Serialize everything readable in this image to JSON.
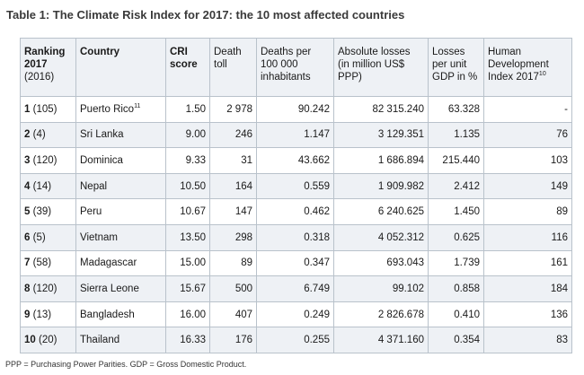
{
  "title": "Table 1: The Climate Risk Index for 2017: the 10 most affected countries",
  "headers": {
    "ranking_line1": "Ranking",
    "ranking_line2": "2017",
    "ranking_line3": "(2016)",
    "country": "Country",
    "cri": "CRI score",
    "death": "Death toll",
    "deaths_per": "Deaths per 100 000 inhabitants",
    "abs_losses": "Absolute losses (in million US$ PPP)",
    "losses_gdp": "Losses per unit GDP in %",
    "hdi": "Human Development Index 2017",
    "hdi_note": "10"
  },
  "rows": [
    {
      "rank": "1",
      "prev": "(105)",
      "country": "Puerto Rico",
      "note": "11",
      "cri": "1.50",
      "deaths": "2 978",
      "deaths_per": "90.242",
      "losses": "82 315.240",
      "gdp": "63.328",
      "hdi": "-"
    },
    {
      "rank": "2",
      "prev": "(4)",
      "country": "Sri Lanka",
      "note": "",
      "cri": "9.00",
      "deaths": "246",
      "deaths_per": "1.147",
      "losses": "3 129.351",
      "gdp": "1.135",
      "hdi": "76"
    },
    {
      "rank": "3",
      "prev": "(120)",
      "country": "Dominica",
      "note": "",
      "cri": "9.33",
      "deaths": "31",
      "deaths_per": "43.662",
      "losses": "1 686.894",
      "gdp": "215.440",
      "hdi": "103"
    },
    {
      "rank": "4",
      "prev": "(14)",
      "country": "Nepal",
      "note": "",
      "cri": "10.50",
      "deaths": "164",
      "deaths_per": "0.559",
      "losses": "1 909.982",
      "gdp": "2.412",
      "hdi": "149"
    },
    {
      "rank": "5",
      "prev": "(39)",
      "country": "Peru",
      "note": "",
      "cri": "10.67",
      "deaths": "147",
      "deaths_per": "0.462",
      "losses": "6 240.625",
      "gdp": "1.450",
      "hdi": "89"
    },
    {
      "rank": "6",
      "prev": "(5)",
      "country": "Vietnam",
      "note": "",
      "cri": "13.50",
      "deaths": "298",
      "deaths_per": "0.318",
      "losses": "4 052.312",
      "gdp": "0.625",
      "hdi": "116"
    },
    {
      "rank": "7",
      "prev": "(58)",
      "country": "Madagascar",
      "note": "",
      "cri": "15.00",
      "deaths": "89",
      "deaths_per": "0.347",
      "losses": "693.043",
      "gdp": "1.739",
      "hdi": "161"
    },
    {
      "rank": "8",
      "prev": "(120)",
      "country": "Sierra Leone",
      "note": "",
      "cri": "15.67",
      "deaths": "500",
      "deaths_per": "6.749",
      "losses": "99.102",
      "gdp": "0.858",
      "hdi": "184"
    },
    {
      "rank": "9",
      "prev": "(13)",
      "country": "Bangladesh",
      "note": "",
      "cri": "16.00",
      "deaths": "407",
      "deaths_per": "0.249",
      "losses": "2 826.678",
      "gdp": "0.410",
      "hdi": "136"
    },
    {
      "rank": "10",
      "prev": "(20)",
      "country": "Thailand",
      "note": "",
      "cri": "16.33",
      "deaths": "176",
      "deaths_per": "0.255",
      "losses": "4 371.160",
      "gdp": "0.354",
      "hdi": "83"
    }
  ],
  "footnote": "PPP = Purchasing Power Parities. GDP = Gross Domestic Product."
}
